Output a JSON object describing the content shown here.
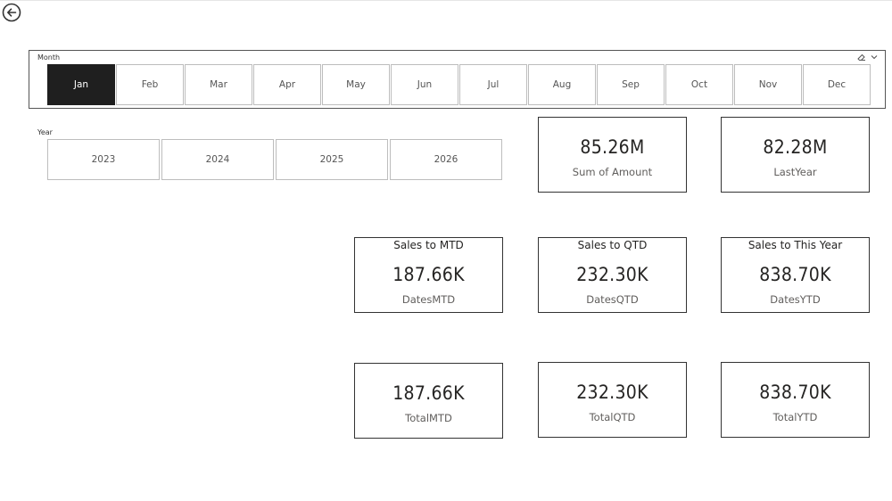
{
  "month_slicer": {
    "title": "Month",
    "items": [
      "Jan",
      "Feb",
      "Mar",
      "Apr",
      "May",
      "Jun",
      "Jul",
      "Aug",
      "Sep",
      "Oct",
      "Nov",
      "Dec"
    ],
    "selected": "Jan"
  },
  "year_slicer": {
    "title": "Year",
    "items": [
      "2023",
      "2024",
      "2025",
      "2026"
    ]
  },
  "cards": {
    "sum_amount": {
      "value": "85.26M",
      "label": "Sum of Amount"
    },
    "last_year": {
      "value": "82.28M",
      "label": "LastYear"
    },
    "sales_mtd": {
      "title": "Sales to MTD",
      "value": "187.66K",
      "label": "DatesMTD"
    },
    "sales_qtd": {
      "title": "Sales to QTD",
      "value": "232.30K",
      "label": "DatesQTD"
    },
    "sales_ytd": {
      "title": "Sales to This Year",
      "value": "838.70K",
      "label": "DatesYTD"
    },
    "total_mtd": {
      "value": "187.66K",
      "label": "TotalMTD"
    },
    "total_qtd": {
      "value": "232.30K",
      "label": "TotalQTD"
    },
    "total_ytd": {
      "value": "838.70K",
      "label": "TotalYTD"
    }
  },
  "icons": {
    "back": "back-arrow-icon",
    "eraser": "eraser-icon",
    "chevron": "chevron-down-icon"
  },
  "colors": {
    "selected_tile": "#1f1f1f",
    "card_border": "#333333",
    "tile_border": "#bdbdbd"
  }
}
